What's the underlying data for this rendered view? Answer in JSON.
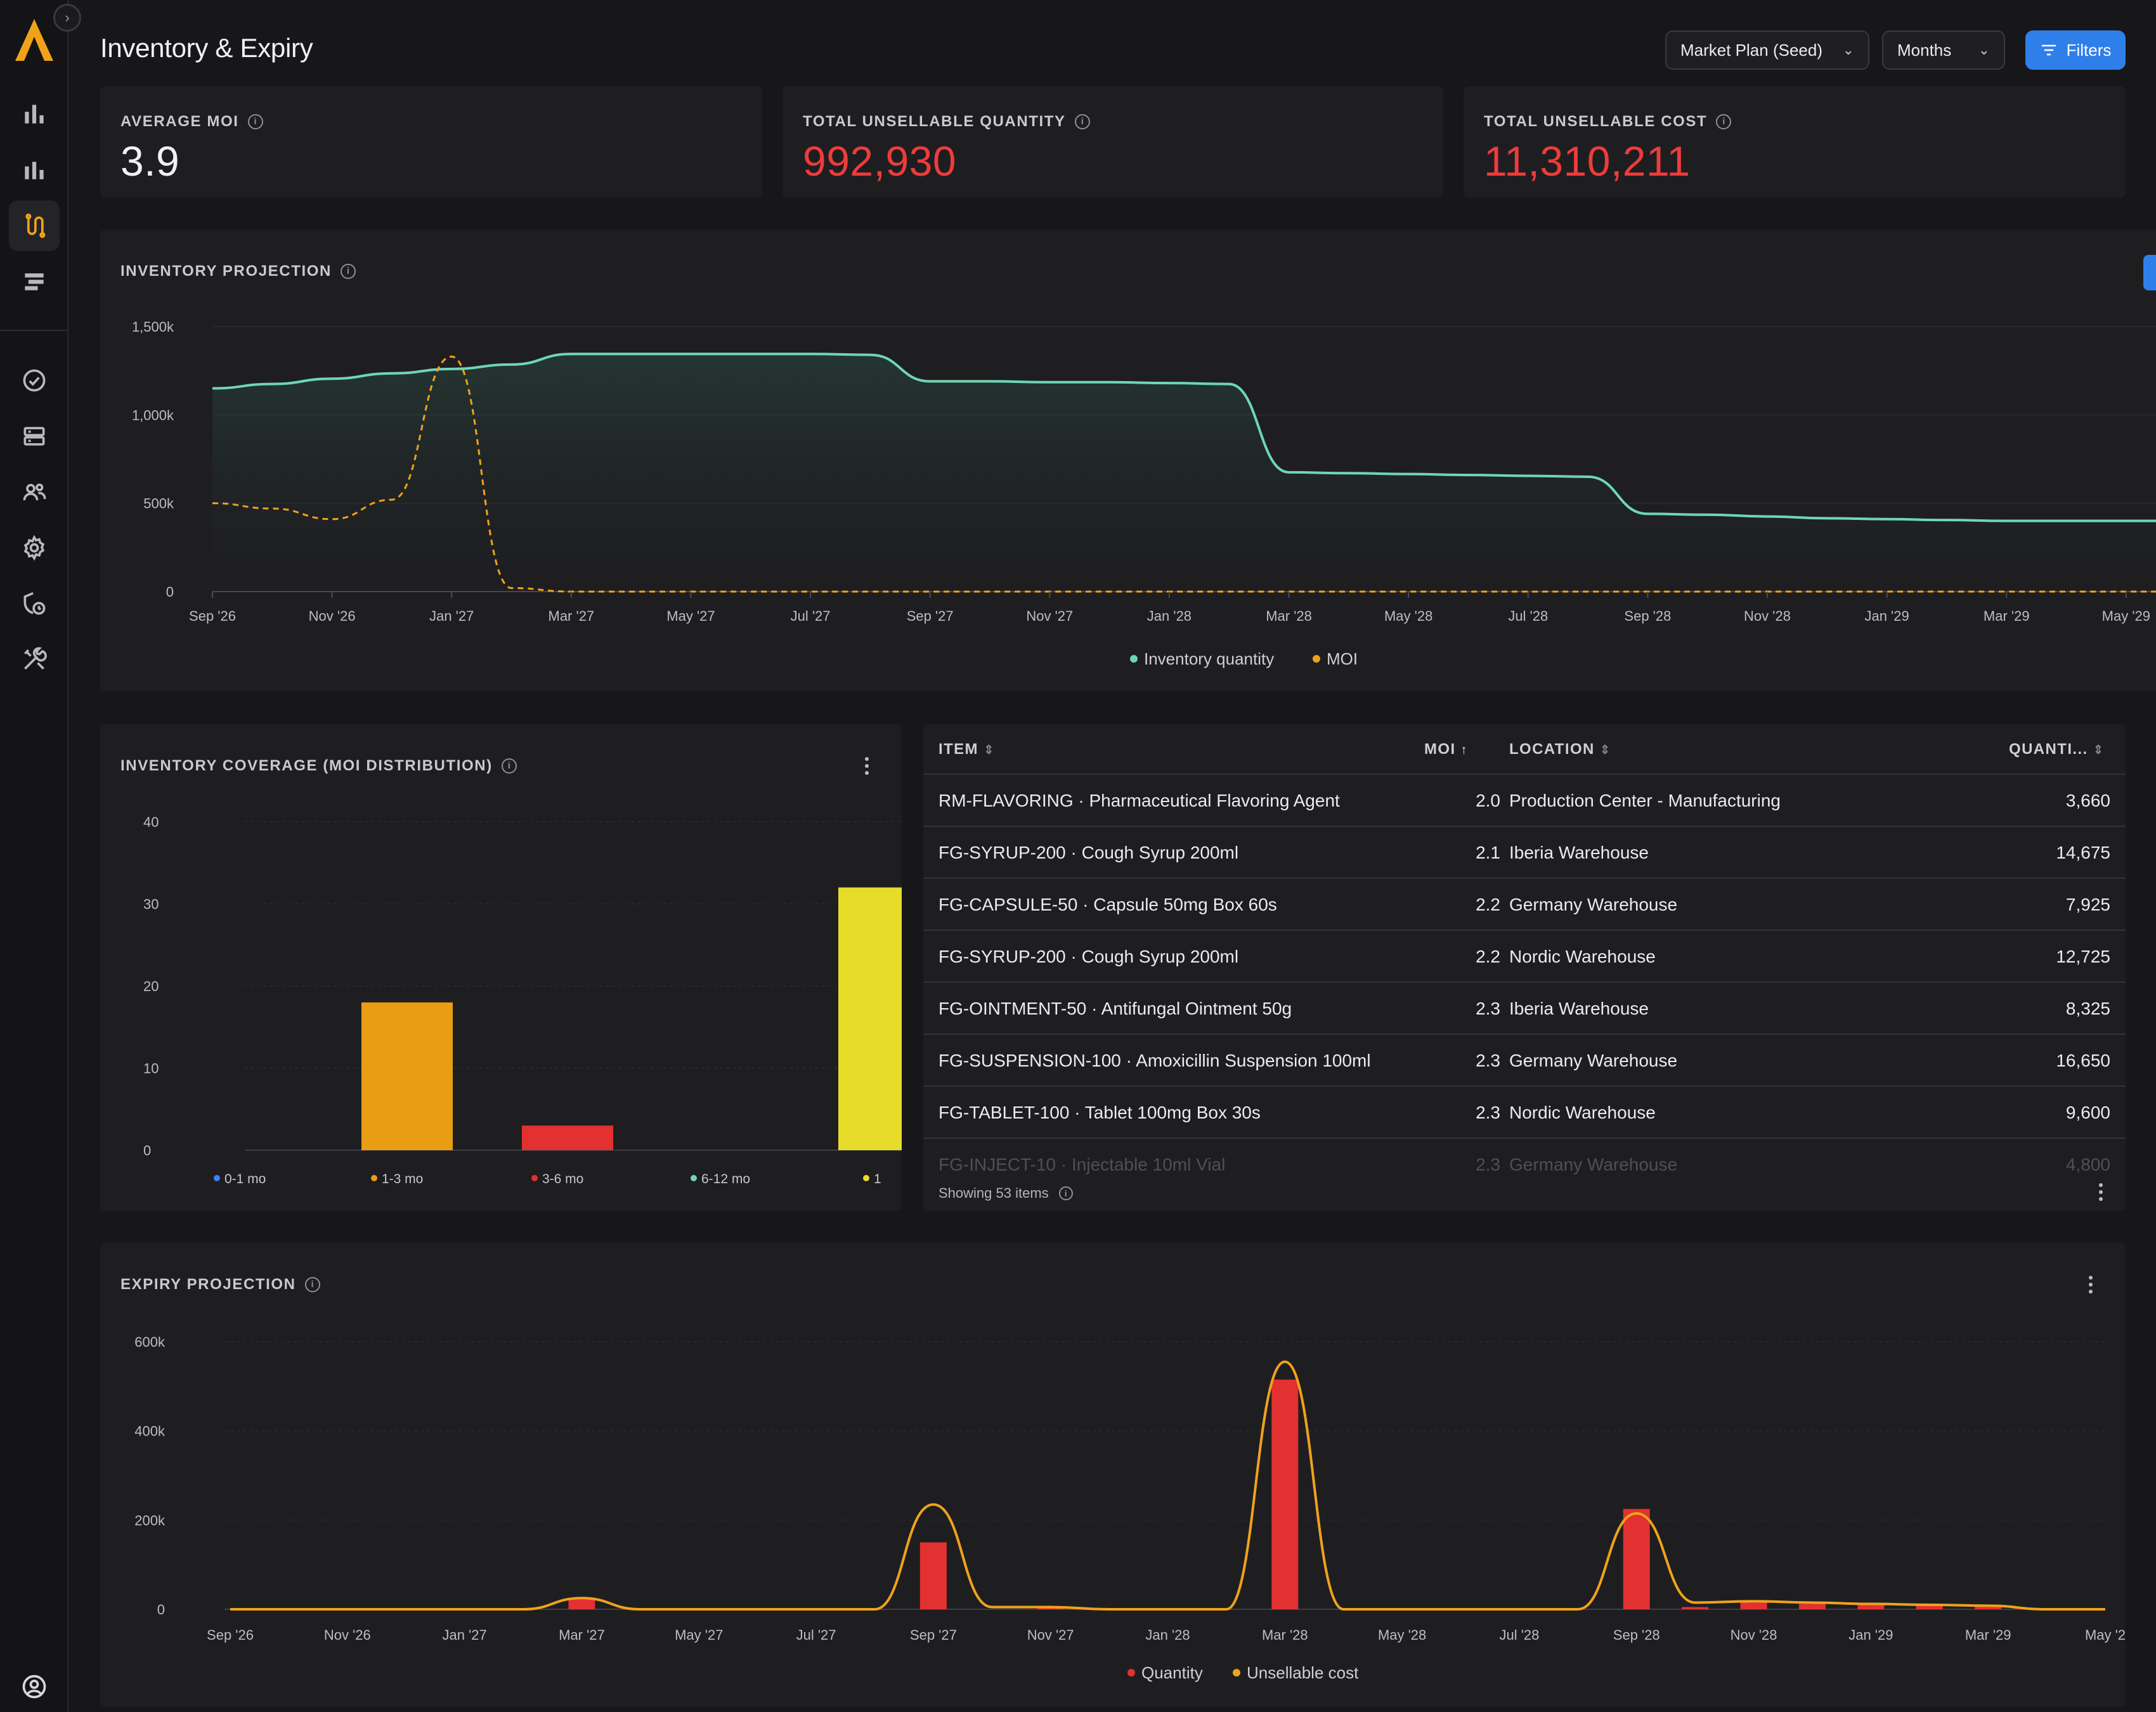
{
  "header": {
    "title": "Inventory & Expiry",
    "plan_select": "Market Plan (Seed)",
    "period_select": "Months",
    "filters_label": "Filters"
  },
  "sidebar": {
    "icons": [
      "bar-chart-icon",
      "bar-chart-icon",
      "route-icon",
      "layers-icon",
      "check-circle-icon",
      "server-icon",
      "users-icon",
      "gear-icon",
      "shield-clock-icon",
      "tools-icon",
      "user-circle-icon"
    ]
  },
  "kpis": [
    {
      "label": "AVERAGE MOI",
      "value": "3.9",
      "tone": "white"
    },
    {
      "label": "TOTAL UNSELLABLE QUANTITY",
      "value": "992,930",
      "tone": "red"
    },
    {
      "label": "TOTAL UNSELLABLE COST",
      "value": "11,310,211",
      "tone": "red"
    }
  ],
  "inventory_projection": {
    "title": "INVENTORY PROJECTION",
    "legend": [
      "Inventory quantity",
      "MOI"
    ]
  },
  "coverage": {
    "title": "INVENTORY COVERAGE (MOI DISTRIBUTION)"
  },
  "expiry": {
    "title": "EXPIRY PROJECTION",
    "legend": [
      "Quantity",
      "Unsellable cost"
    ]
  },
  "table": {
    "columns": [
      "ITEM",
      "MOI",
      "LOCATION",
      "QUANTI..."
    ],
    "rows": [
      {
        "item": "RM-FLAVORING · Pharmaceutical Flavoring Agent",
        "moi": "2.0",
        "location": "Production Center - Manufacturing",
        "qty": "3,660"
      },
      {
        "item": "FG-SYRUP-200 · Cough Syrup 200ml",
        "moi": "2.1",
        "location": "Iberia Warehouse",
        "qty": "14,675"
      },
      {
        "item": "FG-CAPSULE-50 · Capsule 50mg Box 60s",
        "moi": "2.2",
        "location": "Germany Warehouse",
        "qty": "7,925"
      },
      {
        "item": "FG-SYRUP-200 · Cough Syrup 200ml",
        "moi": "2.2",
        "location": "Nordic Warehouse",
        "qty": "12,725"
      },
      {
        "item": "FG-OINTMENT-50 · Antifungal Ointment 50g",
        "moi": "2.3",
        "location": "Iberia Warehouse",
        "qty": "8,325"
      },
      {
        "item": "FG-SUSPENSION-100 · Amoxicillin Suspension 100ml",
        "moi": "2.3",
        "location": "Germany Warehouse",
        "qty": "16,650"
      },
      {
        "item": "FG-TABLET-100 · Tablet 100mg Box 30s",
        "moi": "2.3",
        "location": "Nordic Warehouse",
        "qty": "9,600"
      },
      {
        "item": "FG-INJECT-10 · Injectable 10ml Vial",
        "moi": "2.3",
        "location": "Germany Warehouse",
        "qty": "4,800"
      }
    ],
    "footer": "Showing 53 items"
  },
  "colors": {
    "inventory_line": "#6fd6b4",
    "moi_line": "#f0a21a",
    "bar_blue": "#3b82f6",
    "bar_orange": "#e89d15",
    "bar_red": "#e33030",
    "bar_teal": "#6fd6b4",
    "bar_yellow": "#e8dc2a",
    "accent": "#2f7fea"
  },
  "chart_data": [
    {
      "type": "line",
      "title": "INVENTORY PROJECTION",
      "x": [
        "Sep '26",
        "Oct '26",
        "Nov '26",
        "Dec '26",
        "Jan '27",
        "Feb '27",
        "Mar '27",
        "Apr '27",
        "May '27",
        "Jun '27",
        "Jul '27",
        "Aug '27",
        "Sep '27",
        "Oct '27",
        "Nov '27",
        "Dec '27",
        "Jan '28",
        "Feb '28",
        "Mar '28",
        "Apr '28",
        "May '28",
        "Jun '28",
        "Jul '28",
        "Aug '28",
        "Sep '28",
        "Oct '28",
        "Nov '28",
        "Dec '28",
        "Jan '29",
        "Feb '29",
        "Mar '29",
        "Apr '29",
        "May '29",
        "Jun '29"
      ],
      "x_tick_labels": [
        "Sep '26",
        "Nov '26",
        "Jan '27",
        "Mar '27",
        "May '27",
        "Jul '27",
        "Sep '27",
        "Nov '27",
        "Jan '28",
        "Mar '28",
        "May '28",
        "Jul '28",
        "Sep '28",
        "Nov '28",
        "Jan '29",
        "Mar '29",
        "May '29"
      ],
      "series": [
        {
          "name": "Inventory quantity",
          "values": [
            1150,
            1175,
            1205,
            1235,
            1260,
            1285,
            1345,
            1345,
            1345,
            1345,
            1345,
            1340,
            1190,
            1190,
            1185,
            1185,
            1180,
            1175,
            675,
            670,
            665,
            660,
            655,
            650,
            440,
            435,
            425,
            415,
            410,
            405,
            400,
            400,
            400,
            400
          ]
        },
        {
          "name": "MOI",
          "values": [
            500,
            470,
            410,
            520,
            1330,
            20,
            0,
            0,
            0,
            0,
            0,
            0,
            0,
            0,
            0,
            0,
            0,
            0,
            0,
            0,
            0,
            0,
            0,
            0,
            0,
            0,
            0,
            0,
            0,
            0,
            0,
            0,
            0,
            0
          ]
        }
      ],
      "y_tick_labels": [
        "0",
        "500k",
        "1,000k",
        "1,500k"
      ],
      "ylim": [
        0,
        1500
      ],
      "legend_position": "bottom"
    },
    {
      "type": "bar",
      "title": "INVENTORY COVERAGE (MOI DISTRIBUTION)",
      "categories": [
        "0-1 mo",
        "1-3 mo",
        "3-6 mo",
        "6-12 mo",
        "1"
      ],
      "values": [
        0,
        18,
        3,
        0,
        32
      ],
      "y_tick_labels": [
        "0",
        "10",
        "20",
        "30",
        "40"
      ],
      "ylim": [
        0,
        40
      ],
      "legend_position": "bottom"
    },
    {
      "type": "bar",
      "title": "EXPIRY PROJECTION",
      "x": [
        "Sep '26",
        "Oct '26",
        "Nov '26",
        "Dec '26",
        "Jan '27",
        "Feb '27",
        "Mar '27",
        "Apr '27",
        "May '27",
        "Jun '27",
        "Jul '27",
        "Aug '27",
        "Sep '27",
        "Oct '27",
        "Nov '27",
        "Dec '27",
        "Jan '28",
        "Feb '28",
        "Mar '28",
        "Apr '28",
        "May '28",
        "Jun '28",
        "Jul '28",
        "Aug '28",
        "Sep '28",
        "Oct '28",
        "Nov '28",
        "Dec '28",
        "Jan '29",
        "Feb '29",
        "Mar '29",
        "Apr '29",
        "May '29"
      ],
      "x_tick_labels": [
        "Sep '26",
        "Nov '26",
        "Jan '27",
        "Mar '27",
        "May '27",
        "Jul '27",
        "Sep '27",
        "Nov '27",
        "Jan '28",
        "Mar '28",
        "May '28",
        "Jul '28",
        "Sep '28",
        "Nov '28",
        "Jan '29",
        "Mar '29",
        "May '2"
      ],
      "series": [
        {
          "name": "Quantity",
          "values": [
            0,
            0,
            0,
            0,
            0,
            0,
            22,
            0,
            0,
            0,
            0,
            0,
            150,
            0,
            3,
            0,
            0,
            0,
            515,
            0,
            0,
            0,
            0,
            0,
            225,
            5,
            15,
            12,
            10,
            8,
            6,
            0,
            0
          ]
        },
        {
          "name": "Unsellable cost",
          "values": [
            0,
            0,
            0,
            0,
            0,
            0,
            25,
            0,
            0,
            0,
            0,
            0,
            235,
            5,
            5,
            0,
            0,
            0,
            555,
            0,
            0,
            0,
            0,
            0,
            215,
            15,
            18,
            15,
            12,
            10,
            8,
            0,
            0
          ]
        }
      ],
      "y_tick_labels": [
        "0",
        "200k",
        "400k",
        "600k"
      ],
      "ylim": [
        0,
        600
      ],
      "legend_position": "bottom"
    }
  ]
}
